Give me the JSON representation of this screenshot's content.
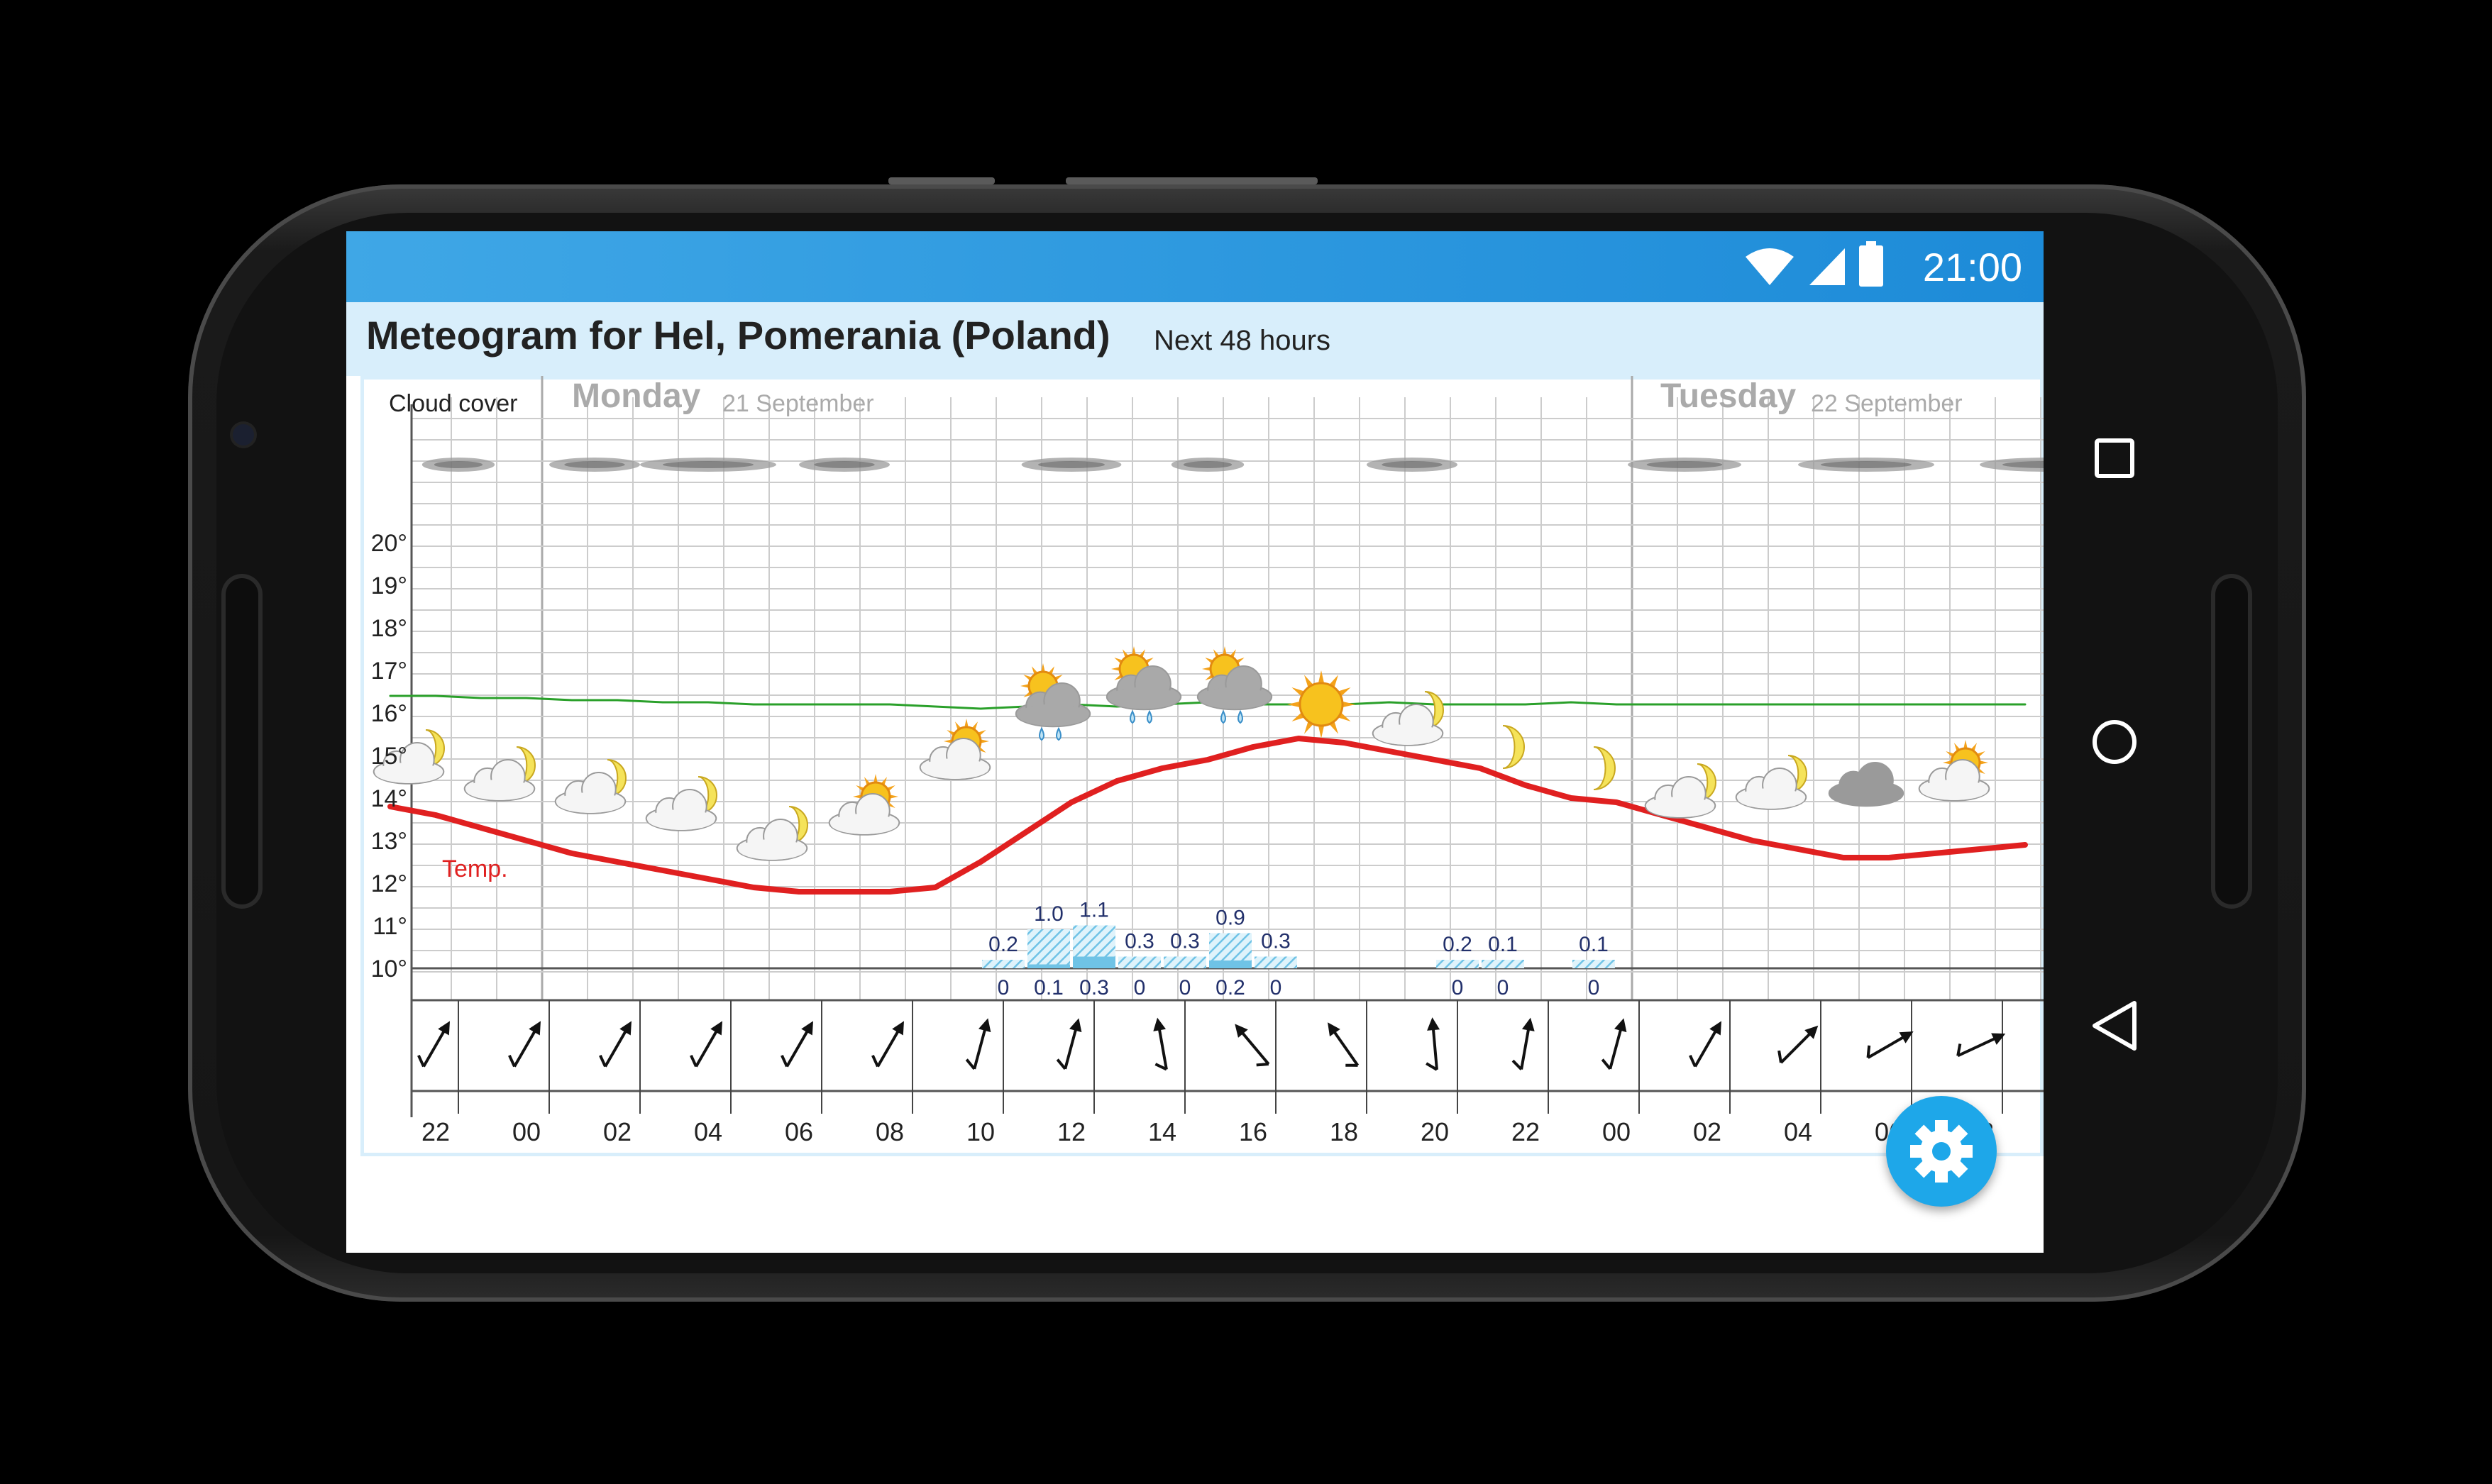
{
  "status_bar": {
    "time": "21:00",
    "icons": [
      "wifi-icon",
      "signal-icon",
      "battery-icon"
    ]
  },
  "header": {
    "title": "Meteogram for Hel, Pomerania (Poland)",
    "subtitle": "Next 48 hours"
  },
  "chart": {
    "cloud_label": "Cloud cover",
    "temp_label": "Temp.",
    "days": [
      {
        "name": "Monday",
        "date": "21 September"
      },
      {
        "name": "Tuesday",
        "date": "22 September"
      }
    ],
    "y_ticks": [
      "10°",
      "11°",
      "12°",
      "13°",
      "14°",
      "15°",
      "16°",
      "17°",
      "18°",
      "19°",
      "20°"
    ],
    "x_ticks": [
      "22",
      "00",
      "02",
      "04",
      "06",
      "08",
      "10",
      "12",
      "14",
      "16",
      "18",
      "20",
      "22",
      "00",
      "02",
      "04",
      "06",
      "08"
    ],
    "colors": {
      "temperature": "#e02020",
      "pressure": "#2aa02a",
      "precip": "#6fc3e6",
      "day_label": "#aaaaaa"
    }
  },
  "chart_data": {
    "type": "line",
    "ylim": [
      10,
      20
    ],
    "x_hours": [
      -3,
      -2,
      -1,
      0,
      1,
      2,
      3,
      4,
      5,
      6,
      7,
      8,
      9,
      10,
      11,
      12,
      13,
      14,
      15,
      16,
      17,
      18,
      19,
      20,
      21,
      22,
      23,
      24,
      25,
      26,
      27,
      28,
      29,
      30,
      31,
      32,
      33,
      34,
      35
    ],
    "series": [
      {
        "name": "Temp.",
        "values": [
          13.8,
          13.6,
          13.3,
          13.0,
          12.7,
          12.5,
          12.3,
          12.1,
          11.9,
          11.8,
          11.8,
          11.8,
          11.9,
          12.5,
          13.2,
          13.9,
          14.4,
          14.7,
          14.9,
          15.2,
          15.4,
          15.3,
          15.1,
          14.9,
          14.7,
          14.3,
          14.0,
          13.9,
          13.6,
          13.3,
          13.0,
          12.8,
          12.6,
          12.6,
          12.7,
          12.8,
          12.9,
          13.0,
          13.2
        ]
      },
      {
        "values": [
          16.4,
          16.4,
          16.35,
          16.35,
          16.3,
          16.3,
          16.25,
          16.25,
          16.2,
          16.2,
          16.2,
          16.2,
          16.15,
          16.1,
          16.15,
          16.2,
          16.15,
          16.2,
          16.25,
          16.2,
          16.2,
          16.2,
          16.25,
          16.2,
          16.2,
          16.2,
          16.25,
          16.2,
          16.2,
          16.2,
          16.2,
          16.2,
          16.2,
          16.2,
          16.2,
          16.2,
          16.2,
          16.2,
          16.2
        ]
      }
    ],
    "precip": [
      {
        "hour": 10.5,
        "total": "0.2",
        "low": "0"
      },
      {
        "hour": 11.5,
        "total": "1.0",
        "low": "0.1"
      },
      {
        "hour": 12.5,
        "total": "1.1",
        "low": "0.3"
      },
      {
        "hour": 13.5,
        "total": "0.3",
        "low": "0"
      },
      {
        "hour": 14.5,
        "total": "0.3",
        "low": "0"
      },
      {
        "hour": 15.5,
        "total": "0.9",
        "low": "0.2"
      },
      {
        "hour": 16.5,
        "total": "0.3",
        "low": "0"
      },
      {
        "hour": 20.5,
        "total": "0.2",
        "low": "0"
      },
      {
        "hour": 21.5,
        "total": "0.1",
        "low": "0"
      },
      {
        "hour": 23.5,
        "total": "0.1",
        "low": "0"
      }
    ],
    "wind_deg": [
      60,
      60,
      60,
      60,
      60,
      60,
      75,
      75,
      100,
      130,
      125,
      95,
      80,
      75,
      60,
      45,
      30,
      25
    ],
    "symbols": [
      {
        "hour": -2.5,
        "type": "moon-cloud",
        "temp": 14.9
      },
      {
        "hour": -0.5,
        "type": "moon-cloud",
        "temp": 14.5
      },
      {
        "hour": 1.5,
        "type": "moon-cloud",
        "temp": 14.2
      },
      {
        "hour": 3.5,
        "type": "moon-cloud",
        "temp": 13.8
      },
      {
        "hour": 5.5,
        "type": "moon-cloud",
        "temp": 13.1
      },
      {
        "hour": 7.5,
        "type": "sun-cloud",
        "temp": 13.7
      },
      {
        "hour": 9.5,
        "type": "sun-cloud",
        "temp": 15.0
      },
      {
        "hour": 11.5,
        "type": "sun-rain",
        "temp": 16.2
      },
      {
        "hour": 13.5,
        "type": "sun-rain",
        "temp": 16.6
      },
      {
        "hour": 15.5,
        "type": "sun-rain",
        "temp": 16.6
      },
      {
        "hour": 17.5,
        "type": "sun",
        "temp": 16.2
      },
      {
        "hour": 19.5,
        "type": "moon-cloud",
        "temp": 15.8
      },
      {
        "hour": 21.5,
        "type": "moon",
        "temp": 15.2
      },
      {
        "hour": 23.5,
        "type": "moon",
        "temp": 14.7
      },
      {
        "hour": 25.5,
        "type": "moon-cloud",
        "temp": 14.1
      },
      {
        "hour": 27.5,
        "type": "moon-cloud",
        "temp": 14.3
      },
      {
        "hour": 29.5,
        "type": "cloud",
        "temp": 14.3
      },
      {
        "hour": 31.5,
        "type": "sun-cloud",
        "temp": 14.5
      }
    ],
    "clouds": [
      {
        "hour": -1.5,
        "w": 1.6
      },
      {
        "hour": 1.5,
        "w": 2.0
      },
      {
        "hour": 4.0,
        "w": 3.0
      },
      {
        "hour": 7.0,
        "w": 2.0
      },
      {
        "hour": 12.0,
        "w": 2.2
      },
      {
        "hour": 15.0,
        "w": 1.6
      },
      {
        "hour": 19.5,
        "w": 2.0
      },
      {
        "hour": 25.5,
        "w": 2.5
      },
      {
        "hour": 29.5,
        "w": 3.0
      },
      {
        "hour": 33.5,
        "w": 3.0
      }
    ]
  }
}
